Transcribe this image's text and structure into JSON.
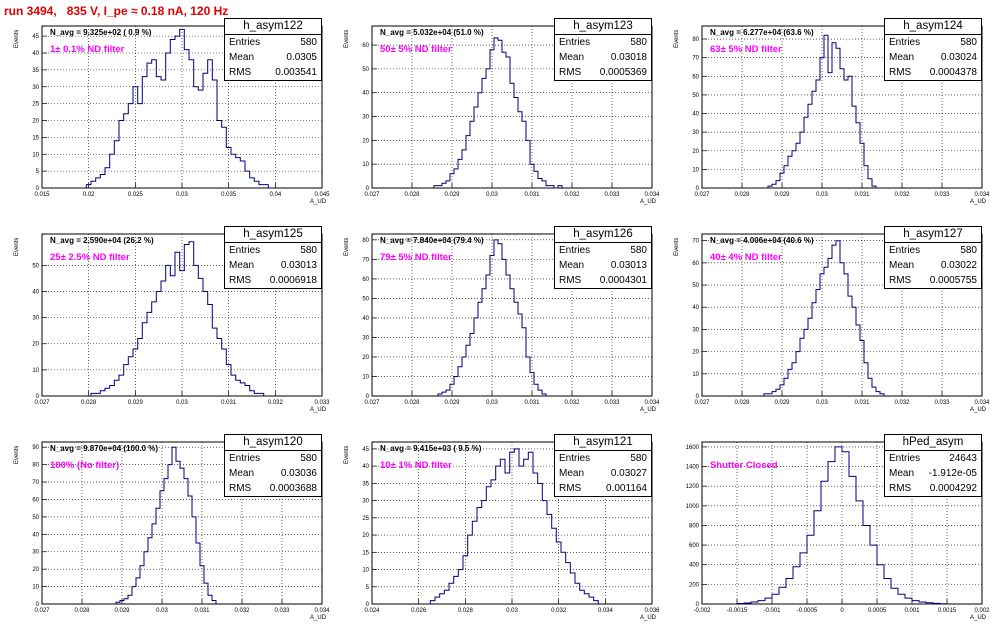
{
  "header": {
    "run_title": "run 3494,   835 V, I_pe ≈ 0.18 nA, 120 Hz"
  },
  "chart_data": [
    {
      "type": "bar",
      "name": "h_asym122",
      "navg": "N_avg = 9.325e+02 ( 0.9 %)",
      "filter": "1± 0.1% ND filter",
      "xlabel": "A_UD",
      "ylabel": "Events",
      "xlim": [
        0.015,
        0.045
      ],
      "ylim": [
        0,
        48
      ],
      "xticks": [
        0.015,
        0.02,
        0.025,
        0.03,
        0.035,
        0.04,
        0.045
      ],
      "yticks": [
        0,
        5,
        10,
        15,
        20,
        25,
        30,
        35,
        40,
        45
      ],
      "stats": [
        [
          "Entries",
          "580"
        ],
        [
          "Mean",
          "0.0305"
        ],
        [
          "RMS",
          "0.003541"
        ]
      ],
      "x": [
        0.02,
        0.0205,
        0.021,
        0.0215,
        0.022,
        0.0225,
        0.023,
        0.0235,
        0.024,
        0.0245,
        0.025,
        0.0255,
        0.026,
        0.0265,
        0.027,
        0.0275,
        0.028,
        0.0285,
        0.029,
        0.0295,
        0.03,
        0.0305,
        0.031,
        0.0315,
        0.032,
        0.0325,
        0.033,
        0.0335,
        0.034,
        0.0345,
        0.035,
        0.0355,
        0.036,
        0.0365,
        0.037,
        0.0375,
        0.038,
        0.0385,
        0.039,
        0.0395
      ],
      "values": [
        1,
        2,
        3,
        4,
        6,
        10,
        14,
        20,
        22,
        25,
        30,
        25,
        33,
        37,
        38,
        33,
        32,
        40,
        44,
        45,
        47,
        41,
        38,
        30,
        29,
        34,
        38,
        32,
        20,
        18,
        12,
        10,
        9,
        8,
        5,
        3,
        2,
        1,
        1,
        0
      ]
    },
    {
      "type": "bar",
      "name": "h_asym123",
      "navg": "N_avg = 5.032e+04 (51.0 %)",
      "filter": "50± 5% ND filter",
      "xlabel": "A_UD",
      "ylabel": "Events",
      "xlim": [
        0.027,
        0.034
      ],
      "ylim": [
        0,
        68
      ],
      "xticks": [
        0.027,
        0.028,
        0.029,
        0.03,
        0.031,
        0.032,
        0.033,
        0.034
      ],
      "yticks": [
        0,
        10,
        20,
        30,
        40,
        50,
        60
      ],
      "stats": [
        [
          "Entries",
          "580"
        ],
        [
          "Mean",
          "0.03018"
        ],
        [
          "RMS",
          "0.0005369"
        ]
      ],
      "x": [
        0.0286,
        0.0287,
        0.0288,
        0.0289,
        0.029,
        0.0291,
        0.0292,
        0.0293,
        0.0294,
        0.0295,
        0.0296,
        0.0297,
        0.0298,
        0.0299,
        0.03,
        0.0301,
        0.0302,
        0.0303,
        0.0304,
        0.0305,
        0.0306,
        0.0307,
        0.0308,
        0.0309,
        0.031,
        0.0311,
        0.0312,
        0.0313,
        0.0314,
        0.0315,
        0.0316,
        0.0317
      ],
      "values": [
        1,
        1,
        2,
        3,
        6,
        8,
        12,
        16,
        22,
        28,
        34,
        40,
        46,
        50,
        58,
        63,
        62,
        57,
        55,
        44,
        38,
        32,
        28,
        20,
        10,
        7,
        4,
        3,
        1,
        1,
        0,
        1
      ]
    },
    {
      "type": "bar",
      "name": "h_asym124",
      "navg": "N_avg = 6.277e+04 (63.6 %)",
      "filter": "63± 5% ND filter",
      "xlabel": "A_UD",
      "ylabel": "Events",
      "xlim": [
        0.027,
        0.034
      ],
      "ylim": [
        0,
        87
      ],
      "xticks": [
        0.027,
        0.028,
        0.029,
        0.03,
        0.031,
        0.032,
        0.033,
        0.034
      ],
      "yticks": [
        0,
        10,
        20,
        30,
        40,
        50,
        60,
        70,
        80
      ],
      "stats": [
        [
          "Entries",
          "580"
        ],
        [
          "Mean",
          "0.03024"
        ],
        [
          "RMS",
          "0.0004378"
        ]
      ],
      "x": [
        0.0287,
        0.0288,
        0.0289,
        0.029,
        0.0291,
        0.0292,
        0.0293,
        0.0294,
        0.0295,
        0.0296,
        0.0297,
        0.0298,
        0.0299,
        0.03,
        0.0301,
        0.0302,
        0.0303,
        0.0304,
        0.0305,
        0.0306,
        0.0307,
        0.0308,
        0.0309,
        0.031,
        0.0311,
        0.0312,
        0.0313
      ],
      "values": [
        1,
        2,
        4,
        8,
        12,
        17,
        20,
        24,
        30,
        38,
        45,
        52,
        58,
        70,
        82,
        62,
        78,
        75,
        64,
        58,
        60,
        44,
        35,
        24,
        12,
        5,
        1
      ]
    },
    {
      "type": "bar",
      "name": "h_asym125",
      "navg": "N_avg = 2.590e+04 (26.2 %)",
      "filter": "25± 2.5% ND filter",
      "xlabel": "A_UD",
      "ylabel": "Events",
      "xlim": [
        0.027,
        0.033
      ],
      "ylim": [
        0,
        62
      ],
      "xticks": [
        0.027,
        0.028,
        0.029,
        0.03,
        0.031,
        0.032,
        0.033
      ],
      "yticks": [
        0,
        10,
        20,
        30,
        40,
        50
      ],
      "stats": [
        [
          "Entries",
          "580"
        ],
        [
          "Mean",
          "0.03013"
        ],
        [
          "RMS",
          "0.0006918"
        ]
      ],
      "x": [
        0.0281,
        0.0282,
        0.0283,
        0.0284,
        0.0285,
        0.0286,
        0.0287,
        0.0288,
        0.0289,
        0.029,
        0.0291,
        0.0292,
        0.0293,
        0.0294,
        0.0295,
        0.0296,
        0.0297,
        0.0298,
        0.0299,
        0.03,
        0.0301,
        0.0302,
        0.0303,
        0.0304,
        0.0305,
        0.0306,
        0.0307,
        0.0308,
        0.0309,
        0.031,
        0.0311,
        0.0312,
        0.0313,
        0.0314,
        0.0315,
        0.0316,
        0.0317
      ],
      "values": [
        1,
        1,
        2,
        3,
        4,
        6,
        8,
        12,
        15,
        18,
        22,
        28,
        32,
        36,
        40,
        44,
        50,
        46,
        55,
        48,
        58,
        59,
        50,
        45,
        40,
        35,
        26,
        22,
        18,
        12,
        8,
        6,
        5,
        4,
        2,
        1,
        1
      ]
    },
    {
      "type": "bar",
      "name": "h_asym126",
      "navg": "N_avg = 7.840e+04 (79.4 %)",
      "filter": "79± 5% ND filter",
      "xlabel": "A_UD",
      "ylabel": "Events",
      "xlim": [
        0.027,
        0.034
      ],
      "ylim": [
        0,
        83
      ],
      "xticks": [
        0.027,
        0.028,
        0.029,
        0.03,
        0.031,
        0.032,
        0.033,
        0.034
      ],
      "yticks": [
        0,
        10,
        20,
        30,
        40,
        50,
        60,
        70,
        80
      ],
      "stats": [
        [
          "Entries",
          "580"
        ],
        [
          "Mean",
          "0.03013"
        ],
        [
          "RMS",
          "0.0004301"
        ]
      ],
      "x": [
        0.0287,
        0.0288,
        0.0289,
        0.029,
        0.0291,
        0.0292,
        0.0293,
        0.0294,
        0.0295,
        0.0296,
        0.0297,
        0.0298,
        0.0299,
        0.03,
        0.0301,
        0.0302,
        0.0303,
        0.0304,
        0.0305,
        0.0306,
        0.0307,
        0.0308,
        0.0309,
        0.031,
        0.0311,
        0.0312,
        0.0313
      ],
      "values": [
        1,
        2,
        3,
        6,
        10,
        15,
        20,
        26,
        32,
        40,
        48,
        55,
        62,
        72,
        80,
        78,
        70,
        62,
        55,
        48,
        42,
        35,
        20,
        12,
        6,
        3,
        1
      ]
    },
    {
      "type": "bar",
      "name": "h_asym127",
      "navg": "N_avg = 4.006e+04 (40.6 %)",
      "filter": "40± 4% ND filter",
      "xlabel": "A_UD",
      "ylabel": "Events",
      "xlim": [
        0.027,
        0.034
      ],
      "ylim": [
        0,
        73
      ],
      "xticks": [
        0.027,
        0.028,
        0.029,
        0.03,
        0.031,
        0.032,
        0.033,
        0.034
      ],
      "yticks": [
        0,
        10,
        20,
        30,
        40,
        50,
        60,
        70
      ],
      "stats": [
        [
          "Entries",
          "580"
        ],
        [
          "Mean",
          "0.03022"
        ],
        [
          "RMS",
          "0.0005755"
        ]
      ],
      "x": [
        0.0286,
        0.0287,
        0.0288,
        0.0289,
        0.029,
        0.0291,
        0.0292,
        0.0293,
        0.0294,
        0.0295,
        0.0296,
        0.0297,
        0.0298,
        0.0299,
        0.03,
        0.0301,
        0.0302,
        0.0303,
        0.0304,
        0.0305,
        0.0306,
        0.0307,
        0.0308,
        0.0309,
        0.031,
        0.0311,
        0.0312,
        0.0313,
        0.0314,
        0.0315
      ],
      "values": [
        1,
        1,
        2,
        3,
        5,
        8,
        12,
        15,
        20,
        26,
        30,
        35,
        42,
        48,
        55,
        58,
        62,
        68,
        70,
        60,
        55,
        45,
        40,
        32,
        25,
        15,
        8,
        4,
        2,
        1
      ]
    },
    {
      "type": "bar",
      "name": "h_asym120",
      "navg": "N_avg = 9.870e+04 (100.0 %)",
      "filter": "100% (No filter)",
      "xlabel": "A_UD",
      "ylabel": "Events",
      "xlim": [
        0.027,
        0.034
      ],
      "ylim": [
        0,
        93
      ],
      "xticks": [
        0.027,
        0.028,
        0.029,
        0.03,
        0.031,
        0.032,
        0.033,
        0.034
      ],
      "yticks": [
        0,
        10,
        20,
        30,
        40,
        50,
        60,
        70,
        80,
        90
      ],
      "stats": [
        [
          "Entries",
          "580"
        ],
        [
          "Mean",
          "0.03036"
        ],
        [
          "RMS",
          "0.0003688"
        ]
      ],
      "x": [
        0.0289,
        0.029,
        0.0291,
        0.0292,
        0.0293,
        0.0294,
        0.0295,
        0.0296,
        0.0297,
        0.0298,
        0.0299,
        0.03,
        0.0301,
        0.0302,
        0.0303,
        0.0304,
        0.0305,
        0.0306,
        0.0307,
        0.0308,
        0.0309,
        0.031,
        0.0311,
        0.0312,
        0.0313
      ],
      "values": [
        1,
        2,
        3,
        5,
        10,
        15,
        22,
        30,
        38,
        46,
        55,
        65,
        72,
        80,
        90,
        82,
        78,
        72,
        62,
        50,
        35,
        22,
        12,
        5,
        2
      ]
    },
    {
      "type": "bar",
      "name": "h_asym121",
      "navg": "N_avg = 9.415e+03 ( 9.5 %)",
      "filter": "10± 1% ND filter",
      "xlabel": "A_UD",
      "ylabel": "Events",
      "xlim": [
        0.024,
        0.036
      ],
      "ylim": [
        0,
        47
      ],
      "xticks": [
        0.024,
        0.026,
        0.028,
        0.03,
        0.032,
        0.034,
        0.036
      ],
      "yticks": [
        0,
        5,
        10,
        15,
        20,
        25,
        30,
        35,
        40,
        45
      ],
      "stats": [
        [
          "Entries",
          "580"
        ],
        [
          "Mean",
          "0.03027"
        ],
        [
          "RMS",
          "0.001164"
        ]
      ],
      "x": [
        0.0266,
        0.0268,
        0.027,
        0.0272,
        0.0274,
        0.0276,
        0.0278,
        0.028,
        0.0282,
        0.0284,
        0.0286,
        0.0288,
        0.029,
        0.0292,
        0.0294,
        0.0296,
        0.0298,
        0.03,
        0.0302,
        0.0304,
        0.0306,
        0.0308,
        0.031,
        0.0312,
        0.0314,
        0.0316,
        0.0318,
        0.032,
        0.0322,
        0.0324,
        0.0326,
        0.0328,
        0.033,
        0.0332,
        0.0334,
        0.0336
      ],
      "values": [
        1,
        2,
        3,
        4,
        6,
        8,
        10,
        14,
        20,
        24,
        28,
        30,
        34,
        36,
        40,
        42,
        38,
        44,
        45,
        40,
        42,
        44,
        38,
        35,
        30,
        26,
        22,
        18,
        15,
        12,
        9,
        6,
        4,
        3,
        2,
        1
      ]
    },
    {
      "type": "bar",
      "name": "hPed_asym",
      "navg": "",
      "filter": "Shutter Closed",
      "xlabel": "A_UD",
      "ylabel": "",
      "xlim": [
        -0.002,
        0.002
      ],
      "ylim": [
        0,
        1650
      ],
      "xticks": [
        -0.002,
        -0.0015,
        -0.001,
        -0.0005,
        0,
        0.0005,
        0.001,
        0.0015,
        0.002
      ],
      "yticks": [
        0,
        200,
        400,
        600,
        800,
        1000,
        1200,
        1400,
        1600
      ],
      "stats": [
        [
          "Entries",
          "24643"
        ],
        [
          "Mean",
          "-1.912e-05"
        ],
        [
          "RMS",
          "0.0004292"
        ]
      ],
      "x": [
        -0.00145,
        -0.00135,
        -0.00125,
        -0.00115,
        -0.00105,
        -0.00095,
        -0.00085,
        -0.00075,
        -0.00065,
        -0.00055,
        -0.00045,
        -0.00035,
        -0.00025,
        -0.00015,
        -5e-05,
        5e-05,
        0.00015,
        0.00025,
        0.00035,
        0.00045,
        0.00055,
        0.00065,
        0.00075,
        0.00085,
        0.00095,
        0.00105,
        0.00115,
        0.00125,
        0.00135,
        0.00145
      ],
      "values": [
        5,
        10,
        20,
        35,
        60,
        100,
        170,
        260,
        380,
        520,
        700,
        950,
        1250,
        1450,
        1600,
        1550,
        1300,
        1050,
        800,
        600,
        400,
        260,
        160,
        100,
        60,
        35,
        20,
        12,
        6,
        3
      ]
    }
  ]
}
